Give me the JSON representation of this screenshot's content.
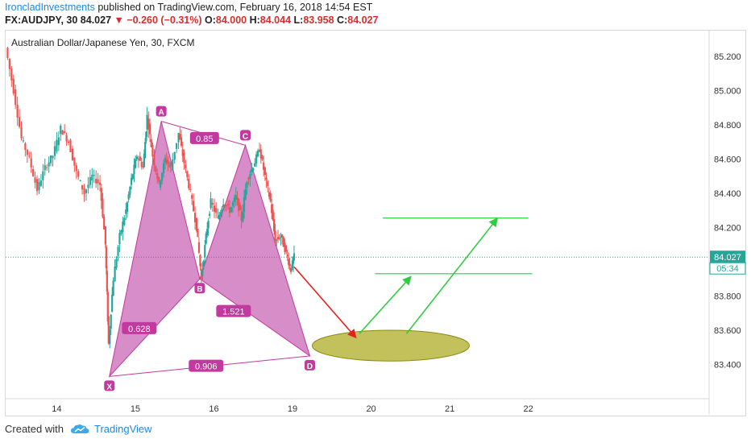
{
  "header": {
    "author": "IroncladInvestments",
    "published_text": " published on TradingView.com, February 16, 2018 14:54 EST",
    "symbol": "FX:AUDJPY, 30",
    "last": "84.027",
    "change_arrow": "▼",
    "change": "−0.260 (−0.31%)",
    "open_label": "O:",
    "open": "84.000",
    "high_label": "H:",
    "high": "84.044",
    "low_label": "L:",
    "low": "83.958",
    "close_label": "C:",
    "close": "84.027"
  },
  "footer": {
    "created_with": "Created with",
    "brand": "TradingView",
    "logo_icon": "tradingview-cloud-icon"
  },
  "chart_data": {
    "type": "candlestick",
    "title": "Australian Dollar/Japanese Yen, 30, FXCM",
    "ylim": [
      83.2,
      85.35
    ],
    "xlim": [
      13.35,
      22.3
    ],
    "y_ticks": [
      "85.200",
      "85.000",
      "84.800",
      "84.600",
      "84.400",
      "84.200",
      "83.800",
      "83.600",
      "83.400"
    ],
    "x_ticks": [
      {
        "x": 14,
        "label": "14"
      },
      {
        "x": 15,
        "label": "15"
      },
      {
        "x": 16,
        "label": "16"
      },
      {
        "x": 17,
        "label": "19"
      },
      {
        "x": 18,
        "label": "20"
      },
      {
        "x": 19,
        "label": "21"
      },
      {
        "x": 20,
        "label": "22"
      }
    ],
    "last_price": 84.027,
    "last_price_label": "84.027",
    "countdown_label": "05:34",
    "price_path": [
      [
        13.35,
        85.25
      ],
      [
        13.45,
        85.0
      ],
      [
        13.55,
        84.72
      ],
      [
        13.65,
        84.6
      ],
      [
        13.75,
        84.42
      ],
      [
        13.85,
        84.55
      ],
      [
        13.95,
        84.62
      ],
      [
        14.05,
        84.78
      ],
      [
        14.15,
        84.7
      ],
      [
        14.25,
        84.52
      ],
      [
        14.35,
        84.4
      ],
      [
        14.45,
        84.5
      ],
      [
        14.55,
        84.45
      ],
      [
        14.62,
        84.1
      ],
      [
        14.66,
        83.52
      ],
      [
        14.72,
        83.9
      ],
      [
        14.8,
        84.15
      ],
      [
        14.88,
        84.3
      ],
      [
        14.95,
        84.48
      ],
      [
        15.02,
        84.62
      ],
      [
        15.1,
        84.55
      ],
      [
        15.15,
        84.85
      ],
      [
        15.22,
        84.62
      ],
      [
        15.3,
        84.45
      ],
      [
        15.38,
        84.6
      ],
      [
        15.45,
        84.55
      ],
      [
        15.55,
        84.75
      ],
      [
        15.62,
        84.58
      ],
      [
        15.7,
        84.4
      ],
      [
        15.78,
        84.2
      ],
      [
        15.84,
        83.9
      ],
      [
        15.9,
        84.15
      ],
      [
        15.96,
        84.35
      ],
      [
        16.05,
        84.25
      ],
      [
        16.12,
        84.35
      ],
      [
        16.2,
        84.3
      ],
      [
        16.28,
        84.38
      ],
      [
        16.35,
        84.25
      ],
      [
        16.42,
        84.48
      ],
      [
        16.5,
        84.56
      ],
      [
        16.58,
        84.66
      ],
      [
        16.65,
        84.5
      ],
      [
        16.72,
        84.35
      ],
      [
        16.78,
        84.12
      ],
      [
        16.85,
        84.15
      ],
      [
        16.92,
        84.05
      ],
      [
        16.98,
        83.95
      ],
      [
        17.02,
        84.03
      ]
    ],
    "harmonic_pattern": {
      "points": [
        {
          "label": "X",
          "x": 14.67,
          "y": 83.33
        },
        {
          "label": "A",
          "x": 15.33,
          "y": 84.82
        },
        {
          "label": "B",
          "x": 15.82,
          "y": 83.9
        },
        {
          "label": "C",
          "x": 16.4,
          "y": 84.68
        },
        {
          "label": "D",
          "x": 17.22,
          "y": 83.45
        }
      ],
      "ratios": [
        {
          "label": "0.85",
          "x": 15.88,
          "y": 84.72
        },
        {
          "label": "0.628",
          "x": 15.05,
          "y": 83.61
        },
        {
          "label": "1.521",
          "x": 16.25,
          "y": 83.71
        },
        {
          "label": "0.906",
          "x": 15.9,
          "y": 83.39
        }
      ]
    },
    "target_zone": {
      "x1": 17.25,
      "x2": 19.25,
      "y_center": 83.51,
      "y_half": 0.09
    },
    "resistance_lines": [
      {
        "x1": 18.15,
        "x2": 20.0,
        "y": 84.255
      },
      {
        "x1": 18.05,
        "x2": 20.05,
        "y": 83.93
      }
    ],
    "arrows": [
      {
        "color": "red",
        "x1": 17.02,
        "y1": 83.97,
        "x2": 17.8,
        "y2": 83.56
      },
      {
        "color": "green",
        "x1": 17.85,
        "y1": 83.58,
        "x2": 18.5,
        "y2": 83.91
      },
      {
        "color": "green",
        "x1": 18.45,
        "y1": 83.58,
        "x2": 19.6,
        "y2": 84.25
      }
    ],
    "colors": {
      "up": "#26a69a",
      "down": "#ef5350",
      "pattern_fill": "#b5309a",
      "pattern_line": "#c2399f",
      "label_bg": "#c2399f",
      "zone_fill": "#a8a617",
      "line_green": "#2ecc40",
      "arrow_red": "#e81f1f",
      "last_price_bg": "#26a69a"
    }
  }
}
